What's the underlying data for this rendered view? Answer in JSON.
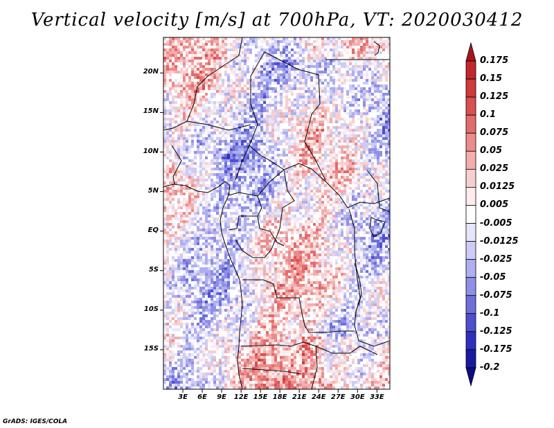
{
  "title": "Vertical velocity [m/s] at 700hPa, VT: 2020030412",
  "credit": "GrADS: IGES/COLA",
  "lat_ticks": [
    {
      "lat": 20,
      "label": "20N"
    },
    {
      "lat": 15,
      "label": "15N"
    },
    {
      "lat": 10,
      "label": "10N"
    },
    {
      "lat": 5,
      "label": "5N"
    },
    {
      "lat": 0,
      "label": "EQ"
    },
    {
      "lat": -5,
      "label": "5S"
    },
    {
      "lat": -10,
      "label": "10S"
    },
    {
      "lat": -15,
      "label": "15S"
    }
  ],
  "lon_ticks": [
    {
      "lon": 3,
      "label": "3E"
    },
    {
      "lon": 6,
      "label": "6E"
    },
    {
      "lon": 9,
      "label": "9E"
    },
    {
      "lon": 12,
      "label": "12E"
    },
    {
      "lon": 15,
      "label": "15E"
    },
    {
      "lon": 18,
      "label": "18E"
    },
    {
      "lon": 21,
      "label": "21E"
    },
    {
      "lon": 24,
      "label": "24E"
    },
    {
      "lon": 27,
      "label": "27E"
    },
    {
      "lon": 30,
      "label": "30E"
    },
    {
      "lon": 33,
      "label": "33E"
    }
  ],
  "extent": {
    "lon_min": 0,
    "lon_max": 35,
    "lat_min": -20,
    "lat_max": 24.5
  },
  "colorbar": {
    "labels": [
      "0.175",
      "0.15",
      "0.125",
      "0.1",
      "0.075",
      "0.05",
      "0.025",
      "0.0125",
      "0.005",
      "-0.005",
      "-0.0125",
      "-0.025",
      "-0.05",
      "-0.075",
      "-0.1",
      "-0.125",
      "-0.175",
      "-0.2"
    ],
    "colors": [
      "#a5171d",
      "#c1272c",
      "#cf3a3a",
      "#da5050",
      "#e46b6b",
      "#ec8b8b",
      "#f3aeae",
      "#f8cfcf",
      "#fdeceb",
      "#ffffff",
      "#e6e6fb",
      "#ccccf6",
      "#aeaef0",
      "#8f8fe7",
      "#6f6fdb",
      "#4e4ecf",
      "#2f2fbd",
      "#1a1aa0",
      "#0d0d80"
    ]
  },
  "chart_data": {
    "type": "heatmap",
    "title": "Vertical velocity [m/s] at 700hPa, VT: 2020030412",
    "variable": "Vertical velocity",
    "units": "m/s",
    "level": "700hPa",
    "valid_time": "2020030412",
    "x_ticks": [
      "3E",
      "6E",
      "9E",
      "12E",
      "15E",
      "18E",
      "21E",
      "24E",
      "27E",
      "30E",
      "33E"
    ],
    "y_ticks": [
      "20N",
      "15N",
      "10N",
      "5N",
      "EQ",
      "5S",
      "10S",
      "15S"
    ],
    "contour_levels": [
      -0.2,
      -0.175,
      -0.125,
      -0.1,
      -0.075,
      -0.05,
      -0.025,
      -0.0125,
      -0.005,
      0.005,
      0.0125,
      0.025,
      0.05,
      0.075,
      0.1,
      0.125,
      0.15,
      0.175
    ]
  }
}
